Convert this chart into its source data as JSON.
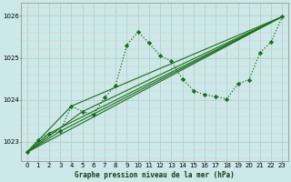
{
  "title": "Graphe pression niveau de la mer (hPa)",
  "bg_color": "#cce8e8",
  "grid_color": "#aacece",
  "xlim": [
    -0.5,
    23.5
  ],
  "ylim": [
    1022.55,
    1026.3
  ],
  "yticks": [
    1023,
    1024,
    1025,
    1026
  ],
  "xticks": [
    0,
    1,
    2,
    3,
    4,
    5,
    6,
    7,
    8,
    9,
    10,
    11,
    12,
    13,
    14,
    15,
    16,
    17,
    18,
    19,
    20,
    21,
    22,
    23
  ],
  "main_x": [
    0,
    1,
    2,
    3,
    4,
    5,
    6,
    7,
    8,
    9,
    10,
    11,
    12,
    13,
    14,
    15,
    16,
    17,
    18,
    19,
    20,
    21,
    22,
    23
  ],
  "main_y": [
    1022.75,
    1023.05,
    1023.2,
    1023.25,
    1023.85,
    1023.72,
    1023.65,
    1024.05,
    1024.35,
    1025.3,
    1025.62,
    1025.35,
    1025.05,
    1024.92,
    1024.5,
    1024.22,
    1024.12,
    1024.08,
    1024.02,
    1024.38,
    1024.48,
    1025.12,
    1025.38,
    1025.98
  ],
  "trend_lines": [
    {
      "x": [
        0,
        23
      ],
      "y": [
        1022.75,
        1025.98
      ]
    },
    {
      "x": [
        0,
        5,
        23
      ],
      "y": [
        1022.75,
        1023.72,
        1025.98
      ]
    },
    {
      "x": [
        0,
        3,
        23
      ],
      "y": [
        1022.75,
        1023.25,
        1025.98
      ]
    },
    {
      "x": [
        0,
        2,
        23
      ],
      "y": [
        1022.75,
        1023.2,
        1025.98
      ]
    },
    {
      "x": [
        0,
        4,
        23
      ],
      "y": [
        1022.75,
        1023.85,
        1025.98
      ]
    }
  ],
  "line_color": "#1a6e1a",
  "marker_color": "#1a6e1a"
}
